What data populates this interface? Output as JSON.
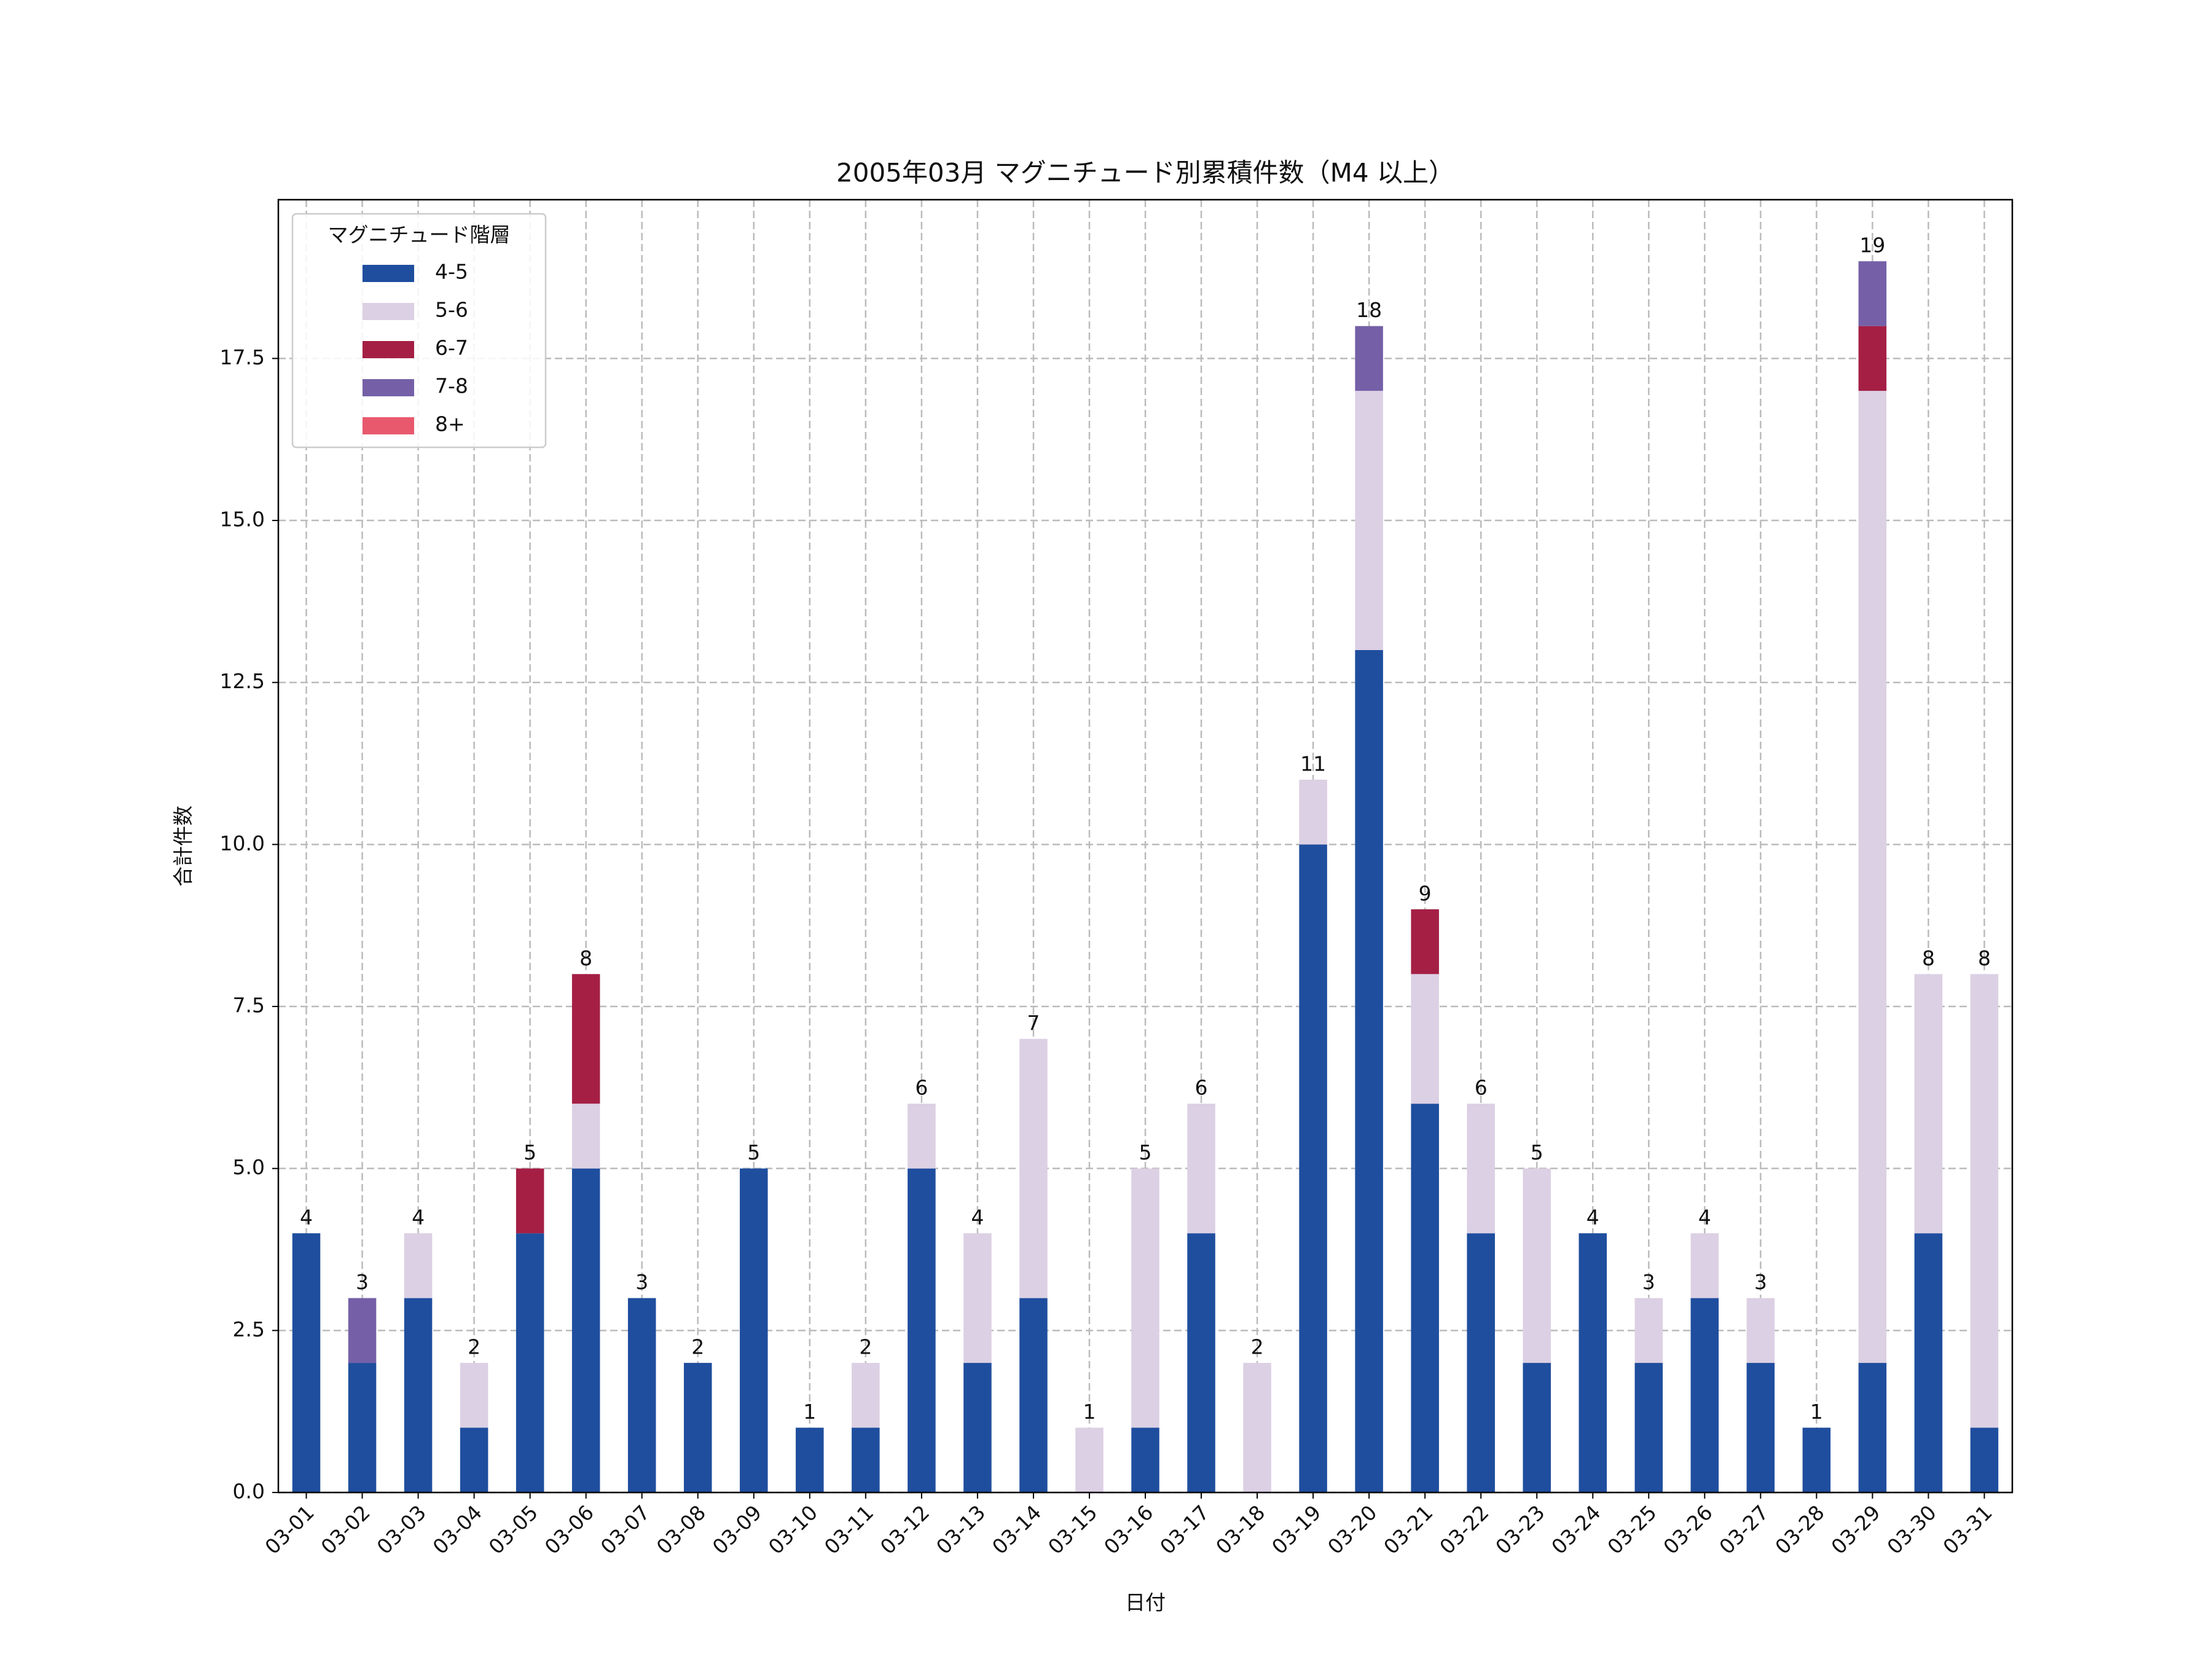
{
  "chart_data": {
    "type": "stacked_bar",
    "title": "2005年03月 マグニチュード別累積件数（M4 以上）",
    "xlabel": "日付",
    "ylabel": "合計件数",
    "legend_title": "マグニチュード階層",
    "legend": "upper left",
    "grid": true,
    "categories": [
      "03-01",
      "03-02",
      "03-03",
      "03-04",
      "03-05",
      "03-06",
      "03-07",
      "03-08",
      "03-09",
      "03-10",
      "03-11",
      "03-12",
      "03-13",
      "03-14",
      "03-15",
      "03-16",
      "03-17",
      "03-18",
      "03-19",
      "03-20",
      "03-21",
      "03-22",
      "03-23",
      "03-24",
      "03-25",
      "03-26",
      "03-27",
      "03-28",
      "03-29",
      "03-30",
      "03-31"
    ],
    "series": [
      {
        "name": "4-5",
        "color": "#1f4e9e",
        "values": [
          4,
          2,
          3,
          1,
          4,
          5,
          3,
          2,
          5,
          1,
          1,
          5,
          2,
          3,
          0,
          1,
          4,
          0,
          10,
          13,
          6,
          4,
          2,
          4,
          2,
          3,
          2,
          1,
          2,
          4,
          1
        ]
      },
      {
        "name": "5-6",
        "color": "#dcd0e4",
        "values": [
          0,
          0,
          1,
          1,
          0,
          1,
          0,
          0,
          0,
          0,
          1,
          1,
          2,
          4,
          1,
          4,
          2,
          2,
          1,
          4,
          2,
          2,
          3,
          0,
          1,
          1,
          1,
          0,
          15,
          4,
          7
        ]
      },
      {
        "name": "6-7",
        "color": "#a51f45",
        "values": [
          0,
          0,
          0,
          0,
          1,
          2,
          0,
          0,
          0,
          0,
          0,
          0,
          0,
          0,
          0,
          0,
          0,
          0,
          0,
          0,
          1,
          0,
          0,
          0,
          0,
          0,
          0,
          0,
          1,
          0,
          0
        ]
      },
      {
        "name": "7-8",
        "color": "#7560a8",
        "values": [
          0,
          1,
          0,
          0,
          0,
          0,
          0,
          0,
          0,
          0,
          0,
          0,
          0,
          0,
          0,
          0,
          0,
          0,
          0,
          1,
          0,
          0,
          0,
          0,
          0,
          0,
          0,
          0,
          1,
          0,
          0
        ]
      },
      {
        "name": "8+",
        "color": "#e8596e",
        "values": [
          0,
          0,
          0,
          0,
          0,
          0,
          0,
          0,
          0,
          0,
          0,
          0,
          0,
          0,
          0,
          0,
          0,
          0,
          0,
          0,
          0,
          0,
          0,
          0,
          0,
          0,
          0,
          0,
          0,
          0,
          0
        ]
      }
    ],
    "totals": [
      4,
      3,
      4,
      2,
      5,
      8,
      3,
      2,
      5,
      1,
      2,
      6,
      4,
      7,
      1,
      5,
      6,
      2,
      11,
      18,
      9,
      6,
      5,
      4,
      3,
      4,
      3,
      1,
      19,
      8,
      8
    ],
    "ylim": [
      0,
      19.95
    ],
    "yticks": [
      {
        "value": 0,
        "label": "0.0"
      },
      {
        "value": 2.5,
        "label": "2.5"
      },
      {
        "value": 5,
        "label": "5.0"
      },
      {
        "value": 7.5,
        "label": "7.5"
      },
      {
        "value": 10,
        "label": "10.0"
      },
      {
        "value": 12.5,
        "label": "12.5"
      },
      {
        "value": 15,
        "label": "15.0"
      },
      {
        "value": 17.5,
        "label": "17.5"
      }
    ]
  }
}
